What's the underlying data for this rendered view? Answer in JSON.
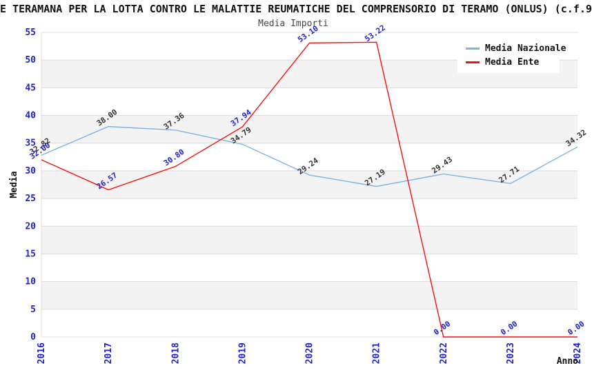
{
  "title": "E TERAMANA PER LA LOTTA CONTRO LE MALATTIE REUMATICHE DEL COMPRENSORIO DI TERAMO (ONLUS) (c.f.9",
  "subtitle": "Media Importi",
  "legend": {
    "items": [
      {
        "label": "Media Nazionale",
        "color": "#7EB2E4"
      },
      {
        "label": "Media Ente",
        "color": "#F50F0F"
      }
    ]
  },
  "chart_data": {
    "type": "line",
    "title": "E TERAMANA PER LA LOTTA CONTRO LE MALATTIE REUMATICHE DEL COMPRENSORIO DI TERAMO (ONLUS) (c.f.9",
    "subtitle": "Media Importi",
    "categories": [
      "2016",
      "2017",
      "2018",
      "2019",
      "2020",
      "2021",
      "2022",
      "2023",
      "2024"
    ],
    "series": [
      {
        "name": "Media Nazionale",
        "color": "#7EB2E4",
        "label_color": "#333333",
        "values": [
          32.82,
          38.0,
          37.36,
          34.79,
          29.24,
          27.19,
          29.43,
          27.71,
          34.32
        ]
      },
      {
        "name": "Media Ente",
        "color": "#F50F0F",
        "label_color": "#2222CC",
        "values": [
          32.0,
          26.57,
          30.8,
          37.94,
          53.1,
          53.22,
          0.0,
          0.0,
          0.0
        ]
      }
    ],
    "xlabel": "Anno",
    "ylabel": "Media",
    "ylim": [
      0,
      55
    ],
    "ytick_step": 5,
    "grid": true,
    "alternating_bands": true,
    "legend_position": "top-right",
    "tick_color": "#2222CC",
    "band_color": "#F3F3F3",
    "grid_color": "#DCDCDC",
    "axis_label_color": "#111111"
  }
}
